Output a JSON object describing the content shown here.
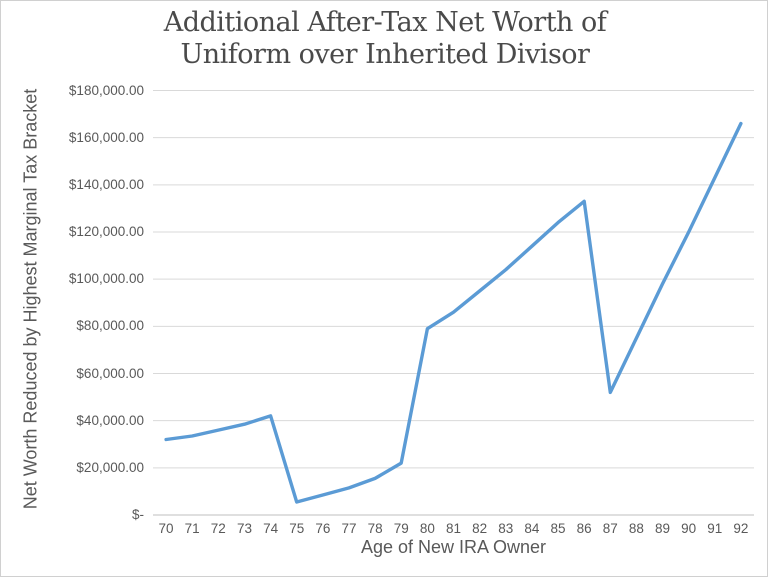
{
  "chart_data": {
    "type": "line",
    "title_lines": [
      "Additional After-Tax Net Worth of",
      "Uniform over Inherited Divisor"
    ],
    "xlabel": "Age of New IRA Owner",
    "ylabel": "Net Worth Reduced by Highest Marginal Tax Bracket",
    "x": [
      70,
      71,
      72,
      73,
      74,
      75,
      76,
      77,
      78,
      79,
      80,
      81,
      82,
      83,
      84,
      85,
      86,
      87,
      88,
      89,
      90,
      91,
      92
    ],
    "values": [
      32000,
      33500,
      36000,
      38500,
      42000,
      5500,
      8500,
      11500,
      15500,
      22000,
      79000,
      86000,
      95000,
      104000,
      114000,
      124000,
      133000,
      52000,
      75000,
      98000,
      120000,
      143000,
      166000
    ],
    "series_name": "Additional after-tax net worth of Uniform over Inherited divisor",
    "ylim": [
      0,
      180000
    ],
    "ytick_interval": 20000,
    "ytick_labels": [
      "$-",
      "$20,000.00",
      "$40,000.00",
      "$60,000.00",
      "$80,000.00",
      "$100,000.00",
      "$120,000.00",
      "$140,000.00",
      "$160,000.00",
      "$180,000.00"
    ],
    "grid": true,
    "legend_position": "none",
    "line_color": "#5B9BD5",
    "gridline_color": "#D9D9D9",
    "axis_line_color": "#BFBFBF",
    "title_color": "#4A4A4A",
    "label_color": "#595959",
    "background_color": "#FFFFFF",
    "border_color": "#D0D0D0"
  }
}
